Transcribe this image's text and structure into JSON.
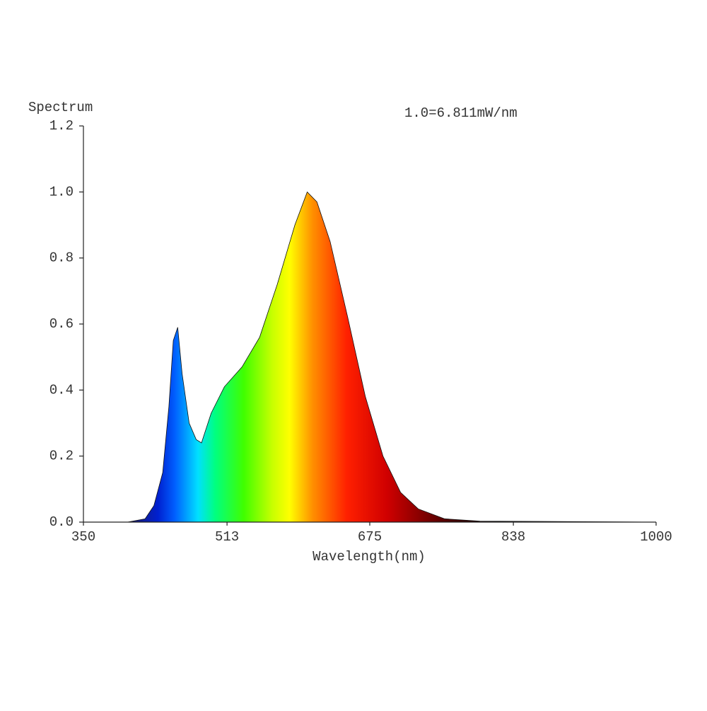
{
  "chart_data": {
    "type": "area",
    "title": "Spectrum",
    "annotation": "1.0=6.811mW/nm",
    "x_label": "Wavelength(nm)",
    "x": [
      350,
      400,
      420,
      430,
      440,
      447,
      452,
      457,
      462,
      470,
      478,
      484,
      495,
      510,
      530,
      550,
      570,
      590,
      604,
      615,
      630,
      650,
      670,
      690,
      710,
      730,
      760,
      800,
      1000
    ],
    "values": [
      0,
      0,
      0.01,
      0.05,
      0.15,
      0.35,
      0.55,
      0.59,
      0.45,
      0.3,
      0.25,
      0.24,
      0.33,
      0.41,
      0.47,
      0.56,
      0.72,
      0.9,
      1.0,
      0.97,
      0.85,
      0.62,
      0.38,
      0.2,
      0.09,
      0.04,
      0.01,
      0.003,
      0
    ],
    "xlim": [
      350,
      1000
    ],
    "xticks": [
      350,
      513,
      675,
      838,
      1000
    ],
    "ylim": [
      0,
      1.2
    ],
    "yticks": [
      {
        "value": 0,
        "label": "0.0"
      },
      0.2,
      0.4,
      0.6,
      0.8,
      {
        "value": 1,
        "label": "1.0"
      },
      1.2
    ]
  }
}
